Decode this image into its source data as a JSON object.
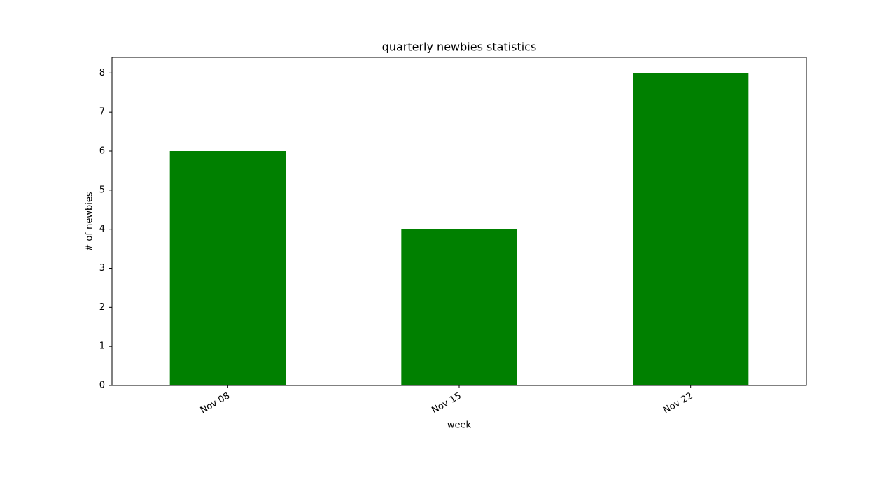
{
  "chart_data": {
    "type": "bar",
    "title": "quarterly newbies statistics",
    "x_label": "week",
    "y_label": "# of newbies",
    "categories": [
      "Nov 08",
      "Nov 15",
      "Nov 22"
    ],
    "values": [
      6,
      4,
      8
    ],
    "color": "#008000",
    "ylim": [
      0,
      8.4
    ],
    "yticks": [
      0,
      1,
      2,
      3,
      4,
      5,
      6,
      7,
      8
    ],
    "grid": false
  }
}
